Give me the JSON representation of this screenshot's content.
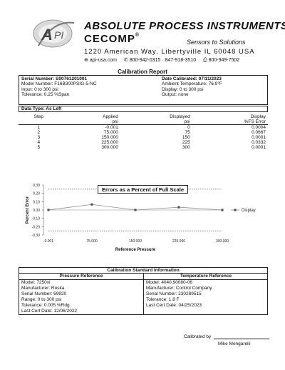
{
  "header": {
    "brand_title": "ABSOLUTE PROCESS INSTRUMENTS",
    "brand_sub": "CECOMP",
    "tagline": "Sensors to Solutions",
    "address": "1220 American Way, Libertyville IL 60048 USA",
    "website": "api-usa.com",
    "phone": "800-942-0315 · 847-918-3510",
    "fax": "800-949-7502",
    "logo_icon": "api-logo-icon"
  },
  "report_title": "Calibration Report",
  "info": {
    "serial": "Serial Number:  S00761201001",
    "model": "Model Number:  F16B300PSIG-5-NC",
    "input": "Input:  0 to 300 psi",
    "tolerance": "Tolerance:  0.25 %Span",
    "date": "Date Calibrated:  07/11/2023",
    "ambient": "Ambient Temperature:  76.9°F",
    "display": "Display:  0 to 300 psi",
    "output": "Output:  none"
  },
  "data_type": "Data Type:  As Left",
  "table": {
    "headers": {
      "step": "Step",
      "applied1": "Applied",
      "applied2": "psi",
      "displayed1": "Displayed",
      "displayed2": "psi",
      "error1": "Display",
      "error2": "%FS Error"
    },
    "rows": [
      {
        "step": "1",
        "applied": "-0.001",
        "displayed": "0",
        "error": "0.0004"
      },
      {
        "step": "2",
        "applied": "75.000",
        "displayed": "75",
        "error": "0.0667"
      },
      {
        "step": "3",
        "applied": "150.000",
        "displayed": "150",
        "error": "0.0001"
      },
      {
        "step": "4",
        "applied": "225.000",
        "displayed": "225",
        "error": "0.0332"
      },
      {
        "step": "5",
        "applied": "300.000",
        "displayed": "300",
        "error": "0.0001"
      }
    ]
  },
  "chart_data": {
    "type": "line",
    "title": "Errors as a Percent of Full Scale",
    "xlabel": "Reference Pressure",
    "ylabel": "Percent Error",
    "x": [
      -0.001,
      75,
      150,
      225,
      300
    ],
    "x_tick_labels": [
      "-0.001",
      "75.000",
      "150.000",
      "225.000",
      "300.000"
    ],
    "y_ticks": [
      0.3,
      0.2,
      0.1,
      0.0,
      -0.1,
      -0.2,
      -0.3
    ],
    "y_tick_labels": [
      "0.30",
      "0.20",
      "0.10",
      "0.00",
      "-0.10",
      "-0.20",
      "-0.30"
    ],
    "ylim": [
      -0.3,
      0.3
    ],
    "tolerance_lines": [
      0.25,
      -0.25
    ],
    "legend_position": "right",
    "series": [
      {
        "name": "Display",
        "values": [
          0.0004,
          0.0667,
          0.0001,
          0.0332,
          0.0001
        ]
      }
    ],
    "colors": {
      "line": "#8c8c8c",
      "marker": "#555555",
      "tolerance": "#333333"
    }
  },
  "standards": {
    "title": "Calibration Standard Information",
    "pressure": {
      "heading": "Pressure Reference",
      "rows": [
        "Model:  7250xi",
        "Manufacturer:  Ruska",
        "Serial Number:  69920",
        "Range:  0 to 300 psi",
        "Tolerance:  0.005 %Rdg",
        "Last Cert Date:  12/06/2022"
      ]
    },
    "temperature": {
      "heading": "Temperature Reference",
      "rows": [
        "Model:  4040,90080-06",
        "Manufacturer:  Control Company",
        "Serial Number:  230289515",
        "Tolerance:  1.8 F",
        "Last Cert Date:  04/25/2023"
      ]
    }
  },
  "signature": {
    "label": "Calibrated by",
    "name": "Mike Mengarelli"
  }
}
